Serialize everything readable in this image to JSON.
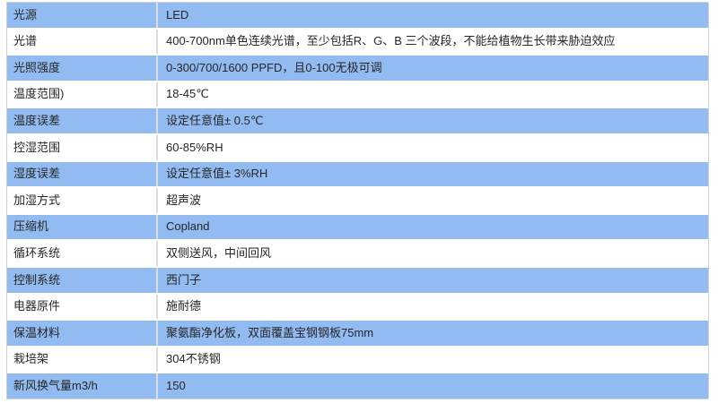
{
  "colors": {
    "row_blue": "#92bbf2",
    "row_white": "#ffffff",
    "grid_line": "#dcdcdc",
    "outer_border": "#d3d3d3",
    "text": "#262626"
  },
  "table": {
    "rows": [
      {
        "label": "光源",
        "value": "LED"
      },
      {
        "label": "光谱",
        "value": "400-700nm单色连续光谱，至少包括R、G、B 三个波段，不能给植物生长带来胁迫效应"
      },
      {
        "label": "光照强度",
        "value": "0-300/700/1600 PPFD，且0-100无极可调"
      },
      {
        "label": "温度范围)",
        "value": "18-45℃"
      },
      {
        "label": "温度误差",
        "value": "设定任意值± 0.5℃"
      },
      {
        "label": "控湿范围",
        "value": "60-85%RH"
      },
      {
        "label": "湿度误差",
        "value": "设定任意值± 3%RH"
      },
      {
        "label": "加湿方式",
        "value": "超声波"
      },
      {
        "label": "压缩机",
        "value": "Copland"
      },
      {
        "label": "循环系统",
        "value": "双侧送风，中间回风"
      },
      {
        "label": "控制系统",
        "value": "西门子"
      },
      {
        "label": "电器原件",
        "value": "施耐德"
      },
      {
        "label": "保温材料",
        "value": "聚氨酯净化板，双面覆盖宝钢钢板75mm"
      },
      {
        "label": "栽培架",
        "value": "304不锈钢"
      },
      {
        "label": "新风换气量m3/h",
        "value": "150"
      }
    ]
  }
}
